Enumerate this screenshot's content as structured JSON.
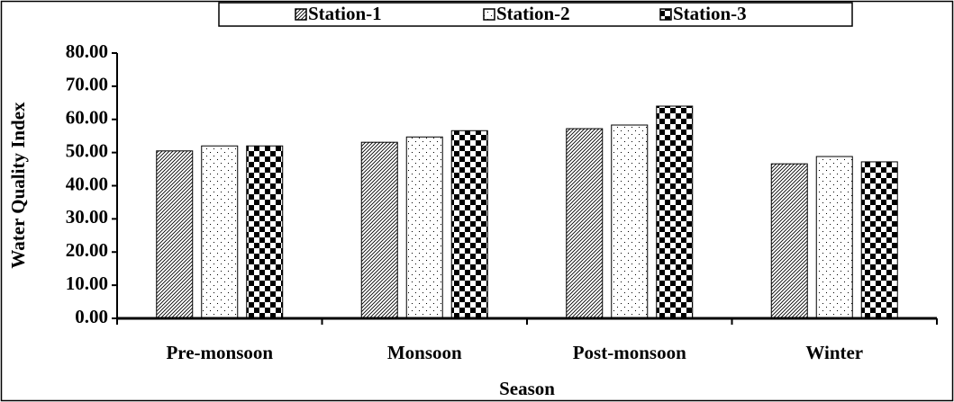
{
  "chart_data": {
    "type": "bar",
    "xlabel": "Season",
    "ylabel": "Water Quality Index",
    "categories": [
      "Pre-monsoon",
      "Monsoon",
      "Post-monsoon",
      "Winter"
    ],
    "series": [
      {
        "name": "Station-1",
        "color": "#000000",
        "pattern": "diagonal",
        "values": [
          50.5,
          53.1,
          57.2,
          46.6
        ]
      },
      {
        "name": "Station-2",
        "color": "#000000",
        "pattern": "dots",
        "values": [
          52.0,
          54.7,
          58.3,
          48.8
        ]
      },
      {
        "name": "Station-3",
        "color": "#000000",
        "pattern": "checker",
        "values": [
          52.0,
          56.6,
          64.0,
          47.2
        ]
      }
    ],
    "ylim": [
      0,
      80
    ],
    "yticks": [
      {
        "value": 0,
        "label": "0.00"
      },
      {
        "value": 10,
        "label": "10.00"
      },
      {
        "value": 20,
        "label": "20.00"
      },
      {
        "value": 30,
        "label": "30.00"
      },
      {
        "value": 40,
        "label": "40.00"
      },
      {
        "value": 50,
        "label": "50.00"
      },
      {
        "value": 60,
        "label": "60.00"
      },
      {
        "value": 70,
        "label": "70.00"
      },
      {
        "value": 80,
        "label": "80.00"
      }
    ],
    "grid": false,
    "legend": "top"
  }
}
